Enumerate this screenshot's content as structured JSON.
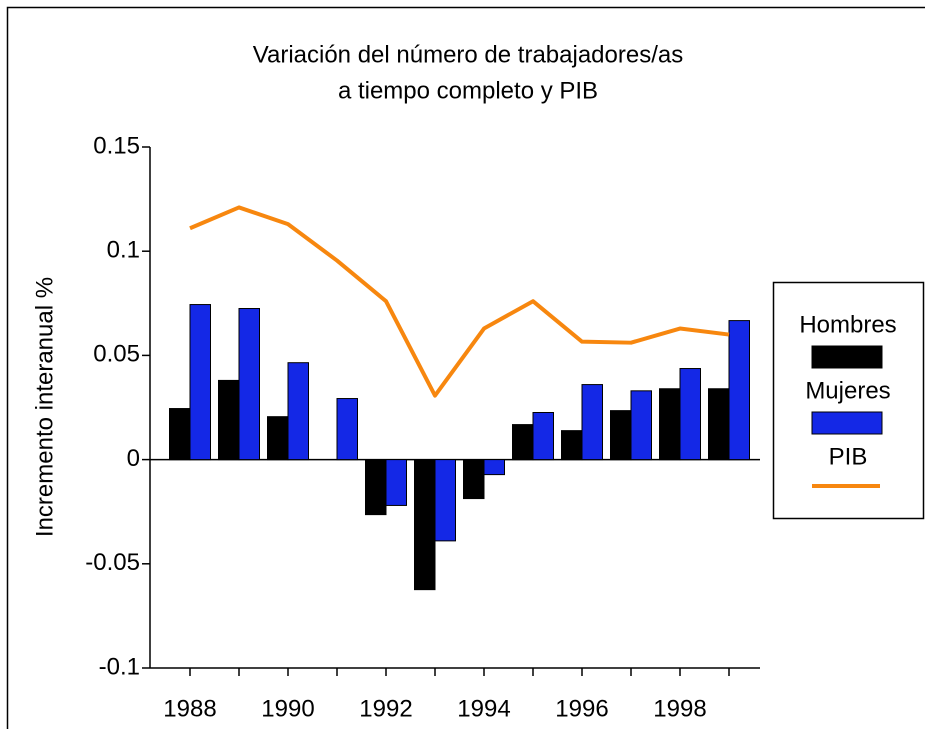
{
  "chart_data": {
    "type": "bar_line",
    "title": [
      "Variación del número de trabajadores/as",
      "a tiempo completo y PIB"
    ],
    "y_label": "Incremento interanual %",
    "categories": [
      "1988",
      null,
      "1990",
      null,
      "1992",
      null,
      "1994",
      null,
      "1996",
      null,
      "1998",
      null
    ],
    "series": [
      {
        "name": "Hombres",
        "color": "#000000",
        "kind": "bar",
        "values": [
          0.0245,
          0.038,
          0.0206,
          0,
          -0.0264,
          -0.0624,
          -0.0187,
          0.0168,
          0.0139,
          0.0235,
          0.034,
          0.034
        ]
      },
      {
        "name": "Mujeres",
        "color": "#1428e6",
        "kind": "bar",
        "values": [
          0.0744,
          0.0725,
          0.0465,
          0.0293,
          -0.022,
          -0.039,
          -0.0072,
          0.0226,
          0.036,
          0.033,
          0.0437,
          0.0667
        ]
      },
      {
        "name": "PIB",
        "color": "#f7870f",
        "kind": "line",
        "values": [
          0.111,
          0.121,
          0.113,
          0.0955,
          0.076,
          0.0307,
          0.0629,
          0.076,
          0.0566,
          0.0561,
          0.0629,
          0.06
        ]
      }
    ],
    "ylim": [
      -0.1,
      0.15
    ],
    "yticks": [
      0.15,
      0.1,
      0.05,
      0,
      -0.05,
      -0.1
    ]
  }
}
